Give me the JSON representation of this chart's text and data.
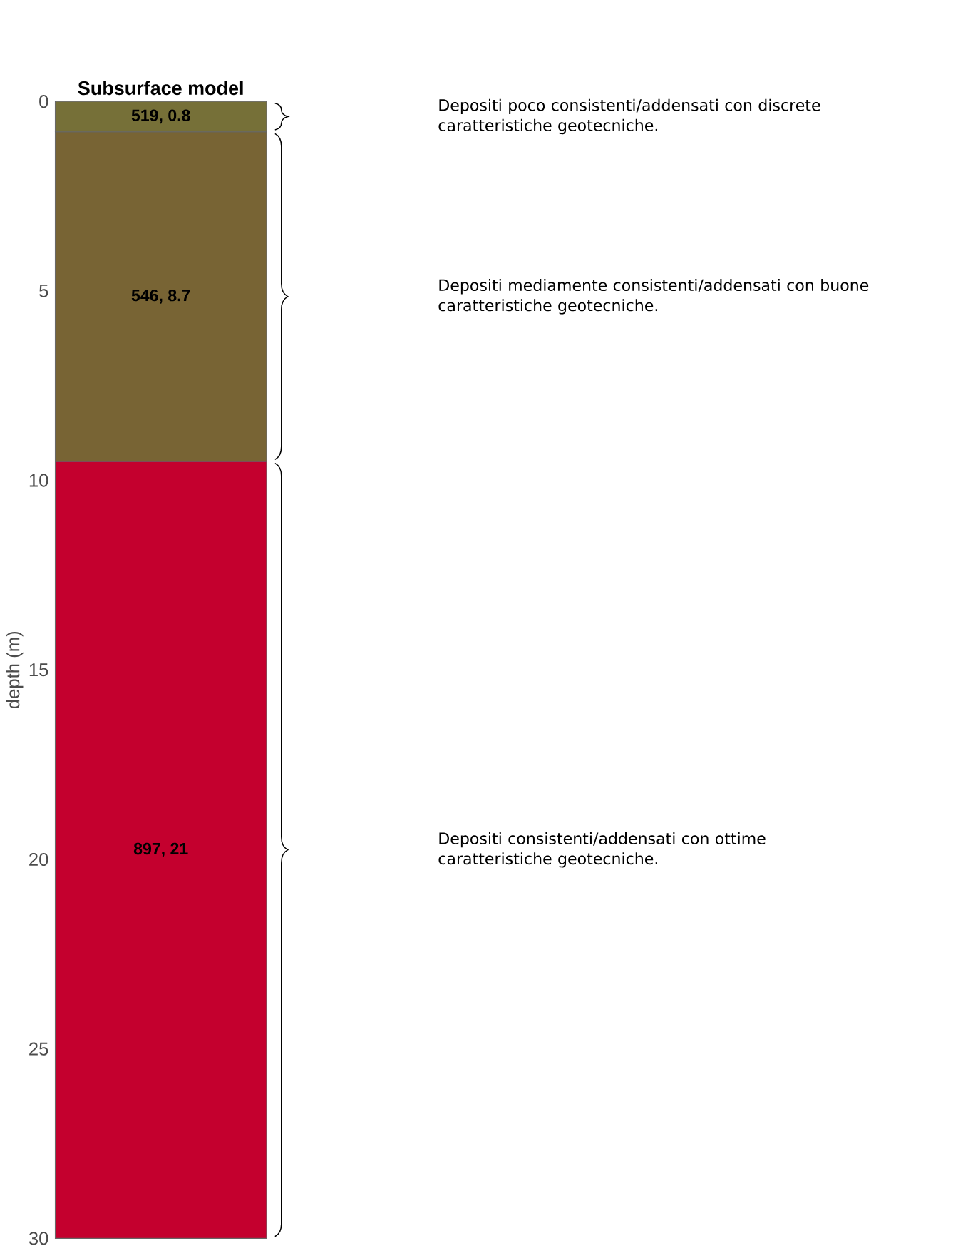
{
  "chart_data": {
    "type": "bar",
    "title": "Subsurface model",
    "ylabel": "depth (m)",
    "stacked": true,
    "categories": [
      null
    ],
    "series": [
      {
        "color": "#767038",
        "values": [
          0.8
        ],
        "value_labels": [
          "519, 0.8"
        ]
      },
      {
        "color": "#786434",
        "values": [
          8.7
        ],
        "value_labels": [
          "546, 8.7"
        ]
      },
      {
        "color": "#c4002e",
        "values": [
          20.5
        ],
        "value_labels": [
          "897, 21"
        ]
      }
    ],
    "ylim": [
      30,
      0
    ],
    "yticks": [
      0,
      5,
      10,
      15,
      20,
      25,
      30
    ],
    "tick_labels": "y",
    "annotations": [
      "Depositi poco consistenti/addensati con discrete caratteristiche geotecniche.",
      "Depositi mediamente consistenti/addensati con buone caratteristiche geotecniche.",
      "Depositi consistenti/addensati con ottime caratteristiche geotecniche."
    ]
  }
}
